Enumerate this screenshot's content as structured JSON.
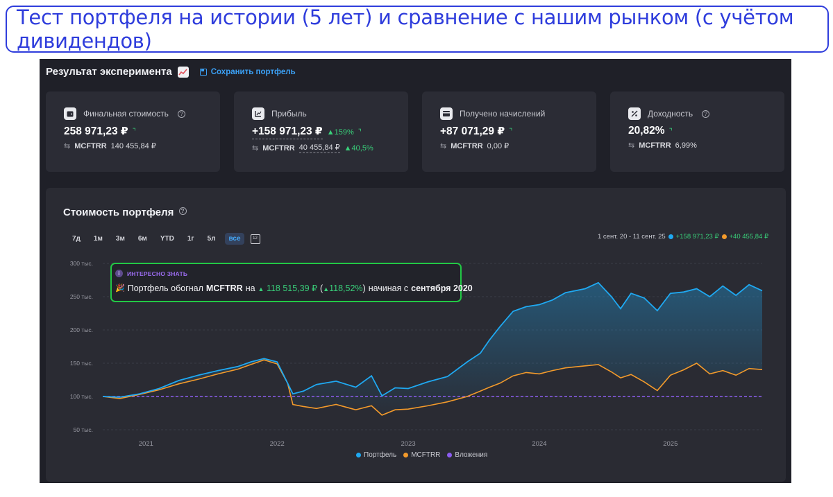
{
  "banner": {
    "text": "Тест портфеля на истории (5 лет) и сравнение с нашим рынком (с учётом дивидендов)"
  },
  "header": {
    "title": "Результат эксперимента",
    "save_label": "Сохранить портфель"
  },
  "cards": [
    {
      "label": "Финальная стоимость",
      "value": "258 971,23 ₽",
      "delta": "",
      "sub_name": "MCFTRR",
      "sub_value": "140 455,84 ₽",
      "sub_delta": "",
      "icon": "wallet-icon"
    },
    {
      "label": "Прибыль",
      "value": "+158 971,23 ₽",
      "delta": "159%",
      "sub_name": "MCFTRR",
      "sub_value": "40 455,84 ₽",
      "sub_delta": "40,5%",
      "icon": "trend-icon"
    },
    {
      "label": "Получено начислений",
      "value": "+87 071,29 ₽",
      "delta": "",
      "sub_name": "MCFTRR",
      "sub_value": "0,00 ₽",
      "sub_delta": "",
      "icon": "card-icon"
    },
    {
      "label": "Доходность",
      "value": "20,82%",
      "delta": "",
      "sub_name": "MCFTRR",
      "sub_value": "6,99%",
      "sub_delta": "",
      "icon": "percent-icon"
    }
  ],
  "panel": {
    "title": "Стоимость портфеля",
    "periods": [
      "7д",
      "1м",
      "3м",
      "6м",
      "YTD",
      "1г",
      "5л",
      "все"
    ],
    "active_period": "все",
    "range_label": "1 сент. 20 - 11 сент. 25",
    "portfolio_gain": "+158 971,23 ₽",
    "index_gain": "+40 455,84 ₽"
  },
  "tooltip": {
    "heading": "ИНТЕРЕСНО ЗНАТЬ",
    "text_1": "Портфель обогнал",
    "index_name": "MCFTRR",
    "text_2": "на",
    "amount": "118 515,39 ₽",
    "percent": "118,52%",
    "text_3": "начиная с",
    "since": "сентября 2020",
    "paren_open": "(",
    "paren_close": ")"
  },
  "colors": {
    "portfolio": "#1fa9f2",
    "index": "#f39a2b",
    "investment": "#8c5cf0",
    "positive": "#39d07a"
  },
  "chart_data": {
    "type": "line",
    "title": "Стоимость портфеля",
    "x_labels": [
      "2021",
      "2022",
      "2023",
      "2024",
      "2025"
    ],
    "y_ticks": [
      "300 тыс.",
      "250 тыс.",
      "200 тыс.",
      "150 тыс.",
      "100 тыс.",
      "50 тыс."
    ],
    "y_tick_values": [
      300000,
      250000,
      200000,
      150000,
      100000,
      50000
    ],
    "ylim": [
      50000,
      300000
    ],
    "x_range": [
      2020.67,
      2025.7
    ],
    "grid": true,
    "legend_position": "bottom",
    "series": [
      {
        "name": "Портфель",
        "x": [
          2020.67,
          2020.8,
          2020.95,
          2021.1,
          2021.25,
          2021.4,
          2021.55,
          2021.7,
          2021.8,
          2021.9,
          2022.0,
          2022.08,
          2022.12,
          2022.2,
          2022.3,
          2022.45,
          2022.6,
          2022.72,
          2022.8,
          2022.9,
          2023.0,
          2023.15,
          2023.3,
          2023.45,
          2023.55,
          2023.62,
          2023.7,
          2023.8,
          2023.9,
          2024.0,
          2024.1,
          2024.2,
          2024.35,
          2024.45,
          2024.55,
          2024.62,
          2024.7,
          2024.8,
          2024.9,
          2025.0,
          2025.1,
          2025.2,
          2025.3,
          2025.4,
          2025.5,
          2025.6,
          2025.7
        ],
        "y": [
          100000,
          99000,
          104000,
          112000,
          124000,
          132000,
          139000,
          145000,
          152000,
          157000,
          152000,
          120000,
          104000,
          108000,
          118000,
          123000,
          114000,
          131000,
          101000,
          113000,
          112000,
          122000,
          130000,
          152000,
          165000,
          185000,
          205000,
          228000,
          235000,
          238000,
          245000,
          256000,
          262000,
          271000,
          250000,
          232000,
          255000,
          248000,
          229000,
          255000,
          257000,
          262000,
          250000,
          266000,
          252000,
          268000,
          258971
        ]
      },
      {
        "name": "MCFTRR",
        "x": [
          2020.67,
          2020.8,
          2020.95,
          2021.1,
          2021.25,
          2021.4,
          2021.55,
          2021.7,
          2021.8,
          2021.9,
          2022.0,
          2022.08,
          2022.12,
          2022.2,
          2022.3,
          2022.45,
          2022.6,
          2022.72,
          2022.8,
          2022.9,
          2023.0,
          2023.15,
          2023.3,
          2023.45,
          2023.55,
          2023.62,
          2023.7,
          2023.8,
          2023.9,
          2024.0,
          2024.1,
          2024.2,
          2024.35,
          2024.45,
          2024.55,
          2024.62,
          2024.7,
          2024.8,
          2024.9,
          2025.0,
          2025.1,
          2025.2,
          2025.3,
          2025.4,
          2025.5,
          2025.6,
          2025.7
        ],
        "y": [
          100000,
          97000,
          103000,
          110000,
          119000,
          126000,
          134000,
          141000,
          148000,
          155000,
          149000,
          120000,
          88000,
          85000,
          82000,
          88000,
          80000,
          86000,
          72000,
          80000,
          81000,
          86000,
          92000,
          100000,
          108000,
          114000,
          120000,
          131000,
          136000,
          134000,
          139000,
          143000,
          146000,
          148000,
          137000,
          128000,
          133000,
          122000,
          109000,
          132000,
          140000,
          150000,
          134000,
          139000,
          132000,
          142000,
          140456
        ]
      },
      {
        "name": "Вложения",
        "x": [
          2020.67,
          2025.7
        ],
        "y": [
          100000,
          100000
        ]
      }
    ]
  }
}
